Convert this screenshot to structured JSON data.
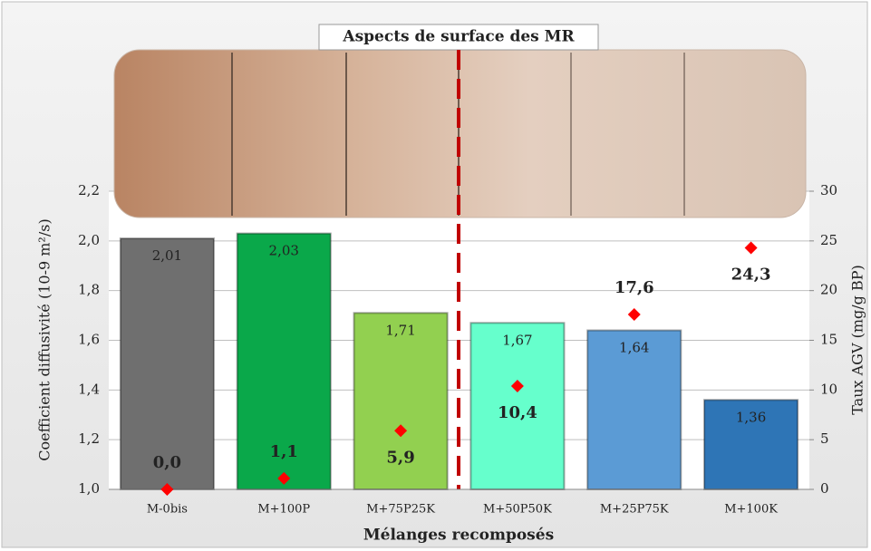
{
  "chart_data": {
    "type": "bar",
    "title": "Aspects de surface des MR",
    "x_label": "Mélanges recomposés",
    "y_label": "Coefficient diffusivité (10-9 m²/s)",
    "y2_label": "Taux AGV (mg/g BP)",
    "categories": [
      "M-0bis",
      "M+100P",
      "M+75P25K",
      "M+50P50K",
      "M+25P75K",
      "M+100K"
    ],
    "series": [
      {
        "type": "bar",
        "values": [
          2.01,
          2.03,
          1.71,
          1.67,
          1.64,
          1.36
        ],
        "value_labels": [
          "2,01",
          "2,03",
          "1,71",
          "1,67",
          "1,64",
          "1,36"
        ],
        "colors": [
          "#6f6f6f",
          "#0aa84a",
          "#92d050",
          "#66ffcc",
          "#5b9bd5",
          "#2e75b6"
        ],
        "value_label_colors": [
          "#ffffff",
          "#ffffff",
          "#111111",
          "#111111",
          "#ffffff",
          "#ffffff"
        ]
      },
      {
        "type": "scatter",
        "axis": "y2",
        "color": "#ff0000",
        "values": [
          0.0,
          1.1,
          5.9,
          10.4,
          17.6,
          24.3
        ],
        "value_labels": [
          "0,0",
          "1,1",
          "5,9",
          "10,4",
          "17,6",
          "24,3"
        ]
      }
    ],
    "ylim": [
      1.0,
      2.2
    ],
    "yticks": [
      {
        "value": 1.0,
        "label": "1,0"
      },
      {
        "value": 1.2,
        "label": "1,2"
      },
      {
        "value": 1.4,
        "label": "1,4"
      },
      {
        "value": 1.6,
        "label": "1,6"
      },
      {
        "value": 1.8,
        "label": "1,8"
      },
      {
        "value": 2.0,
        "label": "2,0"
      },
      {
        "value": 2.2,
        "label": "2,2"
      }
    ],
    "y2lim": [
      0,
      30
    ],
    "y2ticks": [
      0,
      5,
      10,
      15,
      20,
      25,
      30
    ],
    "grid": true
  }
}
